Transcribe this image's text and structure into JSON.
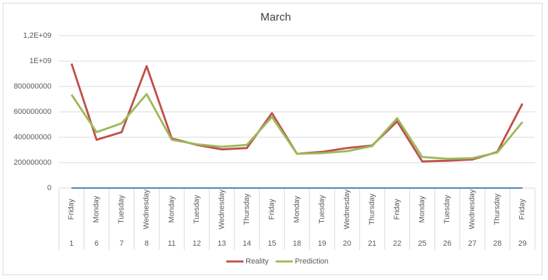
{
  "chart_data": {
    "type": "line",
    "title": "March",
    "categories": [
      "1",
      "6",
      "7",
      "8",
      "11",
      "12",
      "13",
      "14",
      "15",
      "18",
      "19",
      "20",
      "21",
      "22",
      "25",
      "26",
      "27",
      "28",
      "29"
    ],
    "weekdays": [
      "Friday",
      "Monday",
      "Tuesday",
      "Wednesday",
      "Monday",
      "Tuesday",
      "Wednesday",
      "Thursday",
      "Friday",
      "Monday",
      "Tuesday",
      "Wednesday",
      "Thursday",
      "Friday",
      "Monday",
      "Tuesday",
      "Wednesday",
      "Thursday",
      "Friday"
    ],
    "series": [
      {
        "name": "Reality",
        "color": "#c0504d",
        "values": [
          980000000,
          380000000,
          440000000,
          960000000,
          390000000,
          340000000,
          305000000,
          315000000,
          590000000,
          270000000,
          285000000,
          315000000,
          335000000,
          525000000,
          210000000,
          215000000,
          225000000,
          285000000,
          665000000
        ]
      },
      {
        "name": "Prediction",
        "color": "#9bbb59",
        "values": [
          735000000,
          440000000,
          510000000,
          740000000,
          380000000,
          345000000,
          325000000,
          340000000,
          560000000,
          270000000,
          275000000,
          290000000,
          330000000,
          550000000,
          245000000,
          230000000,
          235000000,
          280000000,
          520000000
        ]
      }
    ],
    "ylim": [
      0,
      1200000000
    ],
    "yticks": [
      0,
      200000000,
      400000000,
      600000000,
      800000000,
      {
        "value": 1000000000,
        "label": "1E+09"
      },
      {
        "value": 1200000000,
        "label": "1,2E+09"
      }
    ],
    "grid": true,
    "x_axis_color": "#4a7ebb",
    "legend": "bottom"
  }
}
